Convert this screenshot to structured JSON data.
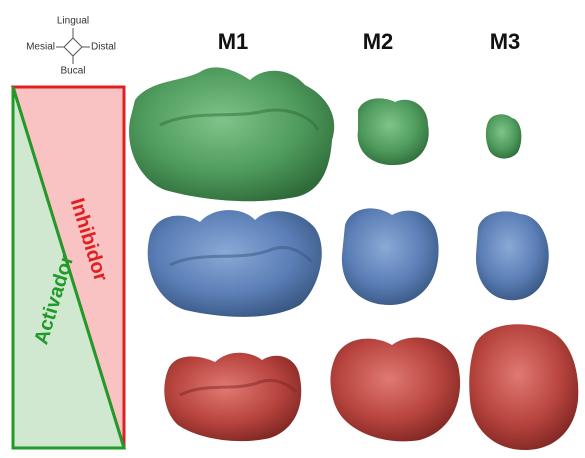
{
  "compass": {
    "top": "Lingual",
    "left": "Mesial",
    "right": "Distal",
    "bottom": "Bucal"
  },
  "columns": [
    "M1",
    "M2",
    "M3"
  ],
  "gradient": {
    "inhibitor": "Inhibidor",
    "activator": "Activador"
  }
}
